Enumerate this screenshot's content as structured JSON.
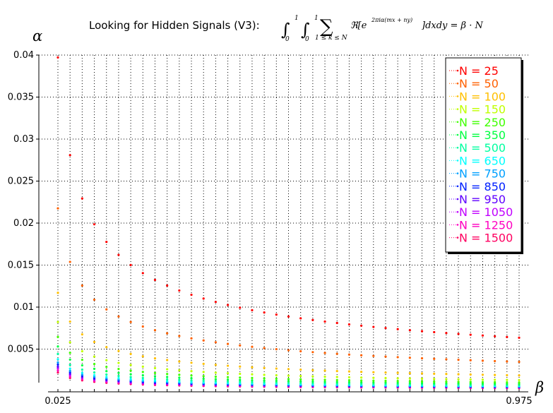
{
  "chart_data": {
    "type": "scatter",
    "title": "Looking for Hidden Signals (V3):",
    "title_formula": {
      "int": "∫",
      "lower": "0",
      "upper": "1",
      "sum": "∑",
      "sum_under": "1 ≤ k ≤ N",
      "body": "ℜ[e",
      "exponent": "2πiα(mx + ny)",
      "tail": "]dxdy = β · N"
    },
    "xlabel": "β",
    "ylabel": "α",
    "x_tick_labels": [
      "0.025",
      "0.975"
    ],
    "y_ticks": [
      "0.005",
      "0.01",
      "0.015",
      "0.02",
      "0.025",
      "0.03",
      "0.035",
      "0.04"
    ],
    "xlim": [
      0.025,
      0.975
    ],
    "ylim": [
      0.0,
      0.04
    ],
    "x_step": 0.025,
    "grid": true,
    "grid_style": "dotted",
    "legend_position": "top-right",
    "alpha_model": "alpha = c_N / sqrt(beta) (fitted from plotted points)",
    "series": [
      {
        "name": "N = 25",
        "color": "#ff0000",
        "c": 0.00628
      },
      {
        "name": "N = 50",
        "color": "#ff6000",
        "c": 0.00344
      },
      {
        "name": "N = 100",
        "color": "#ffc000",
        "c": 0.00185
      },
      {
        "name": "N = 150",
        "color": "#c0ff00",
        "c": 0.0013
      },
      {
        "name": "N = 250",
        "color": "#40ff00",
        "c": 0.00102
      },
      {
        "name": "N = 350",
        "color": "#00ff40",
        "c": 0.00084
      },
      {
        "name": "N = 500",
        "color": "#00ffa0",
        "c": 0.0007
      },
      {
        "name": "N = 650",
        "color": "#00ffff",
        "c": 0.0006
      },
      {
        "name": "N = 750",
        "color": "#00a0ff",
        "c": 0.00054
      },
      {
        "name": "N = 850",
        "color": "#0020ff",
        "c": 0.0005
      },
      {
        "name": "N = 950",
        "color": "#6000ff",
        "c": 0.00046
      },
      {
        "name": "N = 1050",
        "color": "#c000ff",
        "c": 0.00043
      },
      {
        "name": "N = 1250",
        "color": "#ff00c0",
        "c": 0.00039
      },
      {
        "name": "N = 1500",
        "color": "#ff0060",
        "c": 0.00035
      }
    ]
  }
}
